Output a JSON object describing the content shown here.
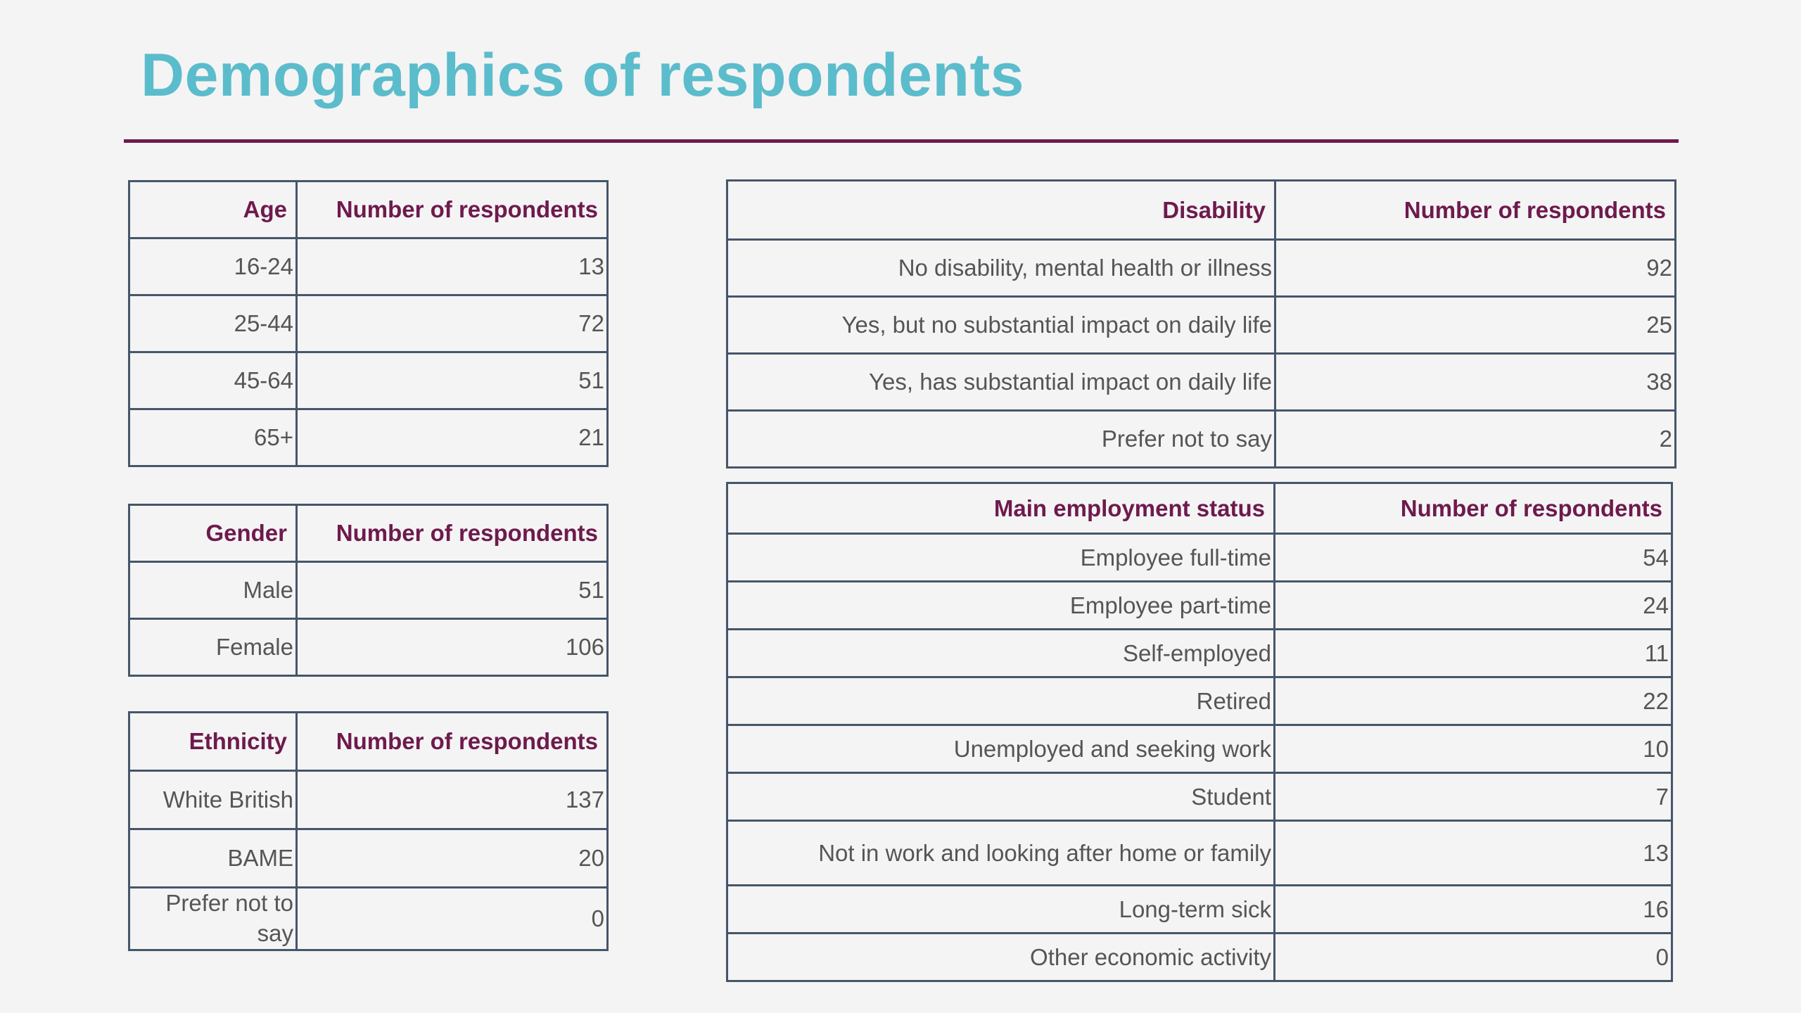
{
  "title": "Demographics of respondents",
  "colors": {
    "title": "#5bbccc",
    "accent": "#6e1a4d",
    "border": "#46566a"
  },
  "age": {
    "header": [
      "Age",
      "Number of respondents"
    ],
    "rows": [
      {
        "label": "16-24",
        "value": "13"
      },
      {
        "label": "25-44",
        "value": "72"
      },
      {
        "label": "45-64",
        "value": "51"
      },
      {
        "label": "65+",
        "value": "21"
      }
    ]
  },
  "gender": {
    "header": [
      "Gender",
      "Number of respondents"
    ],
    "rows": [
      {
        "label": "Male",
        "value": "51"
      },
      {
        "label": "Female",
        "value": "106"
      }
    ]
  },
  "ethnicity": {
    "header": [
      "Ethnicity",
      "Number of respondents"
    ],
    "rows": [
      {
        "label": "White British",
        "value": "137"
      },
      {
        "label": "BAME",
        "value": "20"
      },
      {
        "label": "Prefer not to say",
        "value": "0"
      }
    ]
  },
  "disability": {
    "header": [
      "Disability",
      "Number of respondents"
    ],
    "rows": [
      {
        "label": "No disability, mental health or illness",
        "value": "92"
      },
      {
        "label": "Yes, but no substantial impact on daily life",
        "value": "25"
      },
      {
        "label": "Yes, has substantial impact on daily life",
        "value": "38"
      },
      {
        "label": "Prefer not to say",
        "value": "2"
      }
    ]
  },
  "employment": {
    "header": [
      "Main employment status",
      "Number of respondents"
    ],
    "rows": [
      {
        "label": "Employee full-time",
        "value": "54"
      },
      {
        "label": "Employee part-time",
        "value": "24"
      },
      {
        "label": "Self-employed",
        "value": "11"
      },
      {
        "label": "Retired",
        "value": "22"
      },
      {
        "label": "Unemployed and seeking work",
        "value": "10"
      },
      {
        "label": "Student",
        "value": "7"
      },
      {
        "label": "Not in work and looking after home or family",
        "value": "13"
      },
      {
        "label": "Long-term sick",
        "value": "16"
      },
      {
        "label": "Other economic activity",
        "value": "0"
      }
    ]
  }
}
